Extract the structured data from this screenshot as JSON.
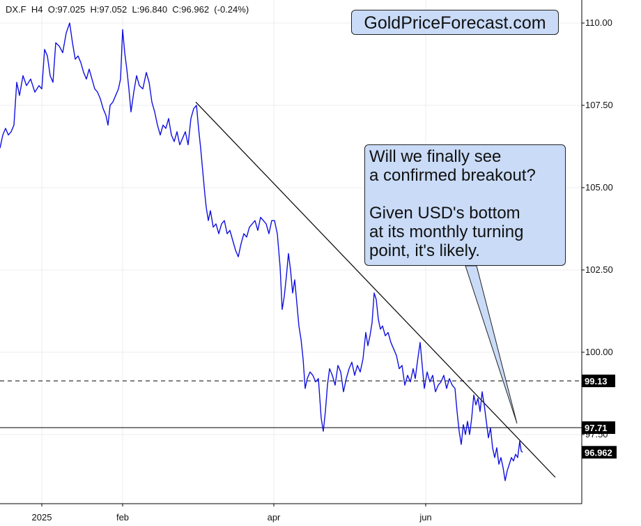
{
  "header": {
    "symbol": "DX.F",
    "interval": "H4",
    "open": "O:97.025",
    "high": "H:97.052",
    "low": "L:96.840",
    "close": "C:96.962",
    "change": "(-0.24%)"
  },
  "brand": {
    "text": "GoldPriceForecast.com"
  },
  "callout": {
    "line1": "Will we finally see",
    "line2": "a confirmed breakout?",
    "line3": "Given USD's bottom",
    "line4": "at its monthly turning",
    "line5": "point, it's likely."
  },
  "colors": {
    "price_line": "#1010e0",
    "callout_bg": "#c9dbf7",
    "axis": "#000000"
  },
  "chart_data": {
    "type": "line",
    "series": [
      {
        "values": [
          [
            0,
            106.2
          ],
          [
            4,
            106.6
          ],
          [
            8,
            106.8
          ],
          [
            12,
            106.6
          ],
          [
            16,
            106.7
          ],
          [
            20,
            106.9
          ],
          [
            24,
            108.2
          ],
          [
            28,
            107.8
          ],
          [
            33,
            108.4
          ],
          [
            38,
            108.1
          ],
          [
            44,
            108.3
          ],
          [
            50,
            107.9
          ],
          [
            56,
            108.1
          ],
          [
            60,
            108.0
          ],
          [
            64,
            109.2
          ],
          [
            68,
            109.0
          ],
          [
            72,
            108.4
          ],
          [
            76,
            108.2
          ],
          [
            80,
            109.4
          ],
          [
            85,
            109.3
          ],
          [
            90,
            109.1
          ],
          [
            95,
            109.7
          ],
          [
            100,
            110.0
          ],
          [
            104,
            109.4
          ],
          [
            108,
            108.9
          ],
          [
            112,
            109.0
          ],
          [
            116,
            108.8
          ],
          [
            120,
            108.5
          ],
          [
            124,
            108.3
          ],
          [
            128,
            108.6
          ],
          [
            132,
            108.3
          ],
          [
            136,
            108.0
          ],
          [
            140,
            107.9
          ],
          [
            144,
            107.7
          ],
          [
            148,
            107.4
          ],
          [
            152,
            107.2
          ],
          [
            155,
            106.9
          ],
          [
            158,
            107.5
          ],
          [
            162,
            107.6
          ],
          [
            166,
            107.8
          ],
          [
            170,
            108.0
          ],
          [
            173,
            108.3
          ],
          [
            176,
            109.8
          ],
          [
            179,
            109.1
          ],
          [
            182,
            108.6
          ],
          [
            185,
            108.0
          ],
          [
            188,
            107.3
          ],
          [
            192,
            107.9
          ],
          [
            196,
            108.4
          ],
          [
            200,
            108.1
          ],
          [
            205,
            108.0
          ],
          [
            210,
            108.5
          ],
          [
            214,
            108.2
          ],
          [
            218,
            107.6
          ],
          [
            222,
            107.3
          ],
          [
            226,
            106.9
          ],
          [
            230,
            106.6
          ],
          [
            234,
            106.9
          ],
          [
            238,
            106.8
          ],
          [
            242,
            107.1
          ],
          [
            246,
            106.6
          ],
          [
            250,
            106.4
          ],
          [
            254,
            106.7
          ],
          [
            258,
            106.3
          ],
          [
            262,
            106.5
          ],
          [
            266,
            106.7
          ],
          [
            270,
            106.3
          ],
          [
            274,
            107.1
          ],
          [
            278,
            107.4
          ],
          [
            282,
            107.5
          ],
          [
            285,
            106.8
          ],
          [
            288,
            106.2
          ],
          [
            291,
            105.5
          ],
          [
            294,
            104.8
          ],
          [
            296,
            104.4
          ],
          [
            299,
            104.0
          ],
          [
            302,
            104.3
          ],
          [
            306,
            103.8
          ],
          [
            310,
            103.9
          ],
          [
            314,
            103.6
          ],
          [
            318,
            103.9
          ],
          [
            322,
            104.0
          ],
          [
            326,
            103.6
          ],
          [
            330,
            103.7
          ],
          [
            334,
            103.4
          ],
          [
            338,
            103.1
          ],
          [
            342,
            102.9
          ],
          [
            346,
            103.3
          ],
          [
            350,
            103.6
          ],
          [
            354,
            103.5
          ],
          [
            358,
            103.8
          ],
          [
            362,
            103.9
          ],
          [
            366,
            104.0
          ],
          [
            370,
            103.7
          ],
          [
            374,
            104.1
          ],
          [
            378,
            104.0
          ],
          [
            382,
            103.9
          ],
          [
            386,
            103.6
          ],
          [
            390,
            104.0
          ],
          [
            394,
            104.0
          ],
          [
            398,
            103.6
          ],
          [
            402,
            102.6
          ],
          [
            405,
            101.3
          ],
          [
            408,
            101.7
          ],
          [
            411,
            102.3
          ],
          [
            414,
            103.0
          ],
          [
            417,
            102.5
          ],
          [
            420,
            101.8
          ],
          [
            423,
            102.2
          ],
          [
            426,
            101.5
          ],
          [
            429,
            100.8
          ],
          [
            432,
            100.4
          ],
          [
            435,
            99.8
          ],
          [
            438,
            98.9
          ],
          [
            441,
            99.2
          ],
          [
            445,
            99.4
          ],
          [
            449,
            99.3
          ],
          [
            453,
            99.1
          ],
          [
            457,
            99.2
          ],
          [
            461,
            98.0
          ],
          [
            464,
            97.6
          ],
          [
            467,
            98.2
          ],
          [
            470,
            99.0
          ],
          [
            473,
            99.5
          ],
          [
            477,
            99.3
          ],
          [
            481,
            99.0
          ],
          [
            485,
            99.6
          ],
          [
            489,
            99.4
          ],
          [
            493,
            98.8
          ],
          [
            497,
            99.2
          ],
          [
            501,
            99.5
          ],
          [
            505,
            99.7
          ],
          [
            509,
            99.3
          ],
          [
            513,
            99.6
          ],
          [
            517,
            99.4
          ],
          [
            521,
            99.8
          ],
          [
            525,
            100.6
          ],
          [
            528,
            100.2
          ],
          [
            531,
            100.5
          ],
          [
            534,
            100.9
          ],
          [
            537,
            101.8
          ],
          [
            540,
            101.6
          ],
          [
            543,
            101.0
          ],
          [
            546,
            100.7
          ],
          [
            549,
            100.8
          ],
          [
            553,
            100.5
          ],
          [
            557,
            100.6
          ],
          [
            561,
            100.3
          ],
          [
            565,
            100.1
          ],
          [
            569,
            99.9
          ],
          [
            573,
            99.5
          ],
          [
            577,
            99.6
          ],
          [
            581,
            99.0
          ],
          [
            585,
            99.3
          ],
          [
            589,
            99.1
          ],
          [
            593,
            99.5
          ],
          [
            596,
            99.2
          ],
          [
            599,
            99.7
          ],
          [
            603,
            100.3
          ],
          [
            606,
            99.6
          ],
          [
            609,
            98.9
          ],
          [
            613,
            99.4
          ],
          [
            617,
            99.1
          ],
          [
            621,
            99.3
          ],
          [
            625,
            98.8
          ],
          [
            629,
            99.0
          ],
          [
            633,
            99.1
          ],
          [
            637,
            99.3
          ],
          [
            641,
            98.9
          ],
          [
            645,
            99.2
          ],
          [
            649,
            99.0
          ],
          [
            653,
            98.9
          ],
          [
            656,
            98.2
          ],
          [
            659,
            97.6
          ],
          [
            662,
            97.2
          ],
          [
            665,
            97.8
          ],
          [
            668,
            97.5
          ],
          [
            671,
            97.9
          ],
          [
            674,
            97.5
          ],
          [
            677,
            98.0
          ],
          [
            680,
            98.7
          ],
          [
            683,
            98.4
          ],
          [
            686,
            98.6
          ],
          [
            689,
            98.2
          ],
          [
            692,
            98.8
          ],
          [
            695,
            98.4
          ],
          [
            698,
            97.9
          ],
          [
            701,
            97.4
          ],
          [
            704,
            97.7
          ],
          [
            707,
            97.1
          ],
          [
            710,
            96.8
          ],
          [
            713,
            97.1
          ],
          [
            716,
            96.6
          ],
          [
            719,
            96.8
          ],
          [
            722,
            96.5
          ],
          [
            725,
            96.1
          ],
          [
            728,
            96.4
          ],
          [
            731,
            96.6
          ],
          [
            734,
            96.8
          ],
          [
            737,
            96.7
          ],
          [
            740,
            96.9
          ],
          [
            743,
            96.8
          ],
          [
            746,
            97.3
          ],
          [
            748,
            97.0
          ],
          [
            750,
            96.962
          ]
        ]
      }
    ],
    "x_ticks": [
      {
        "label": "2025",
        "x": 60
      },
      {
        "label": "feb",
        "x": 176
      },
      {
        "label": "apr",
        "x": 393
      },
      {
        "label": "jun",
        "x": 611
      }
    ],
    "y_ticks": [
      "110.00",
      "107.50",
      "105.00",
      "102.50",
      "100.00",
      "97.50"
    ],
    "ylim": [
      95.4,
      110.7
    ],
    "xlim": [
      0,
      835
    ],
    "horizontal_levels": [
      {
        "value": 99.13,
        "style": "dashed",
        "label": "99.13"
      },
      {
        "value": 97.71,
        "style": "solid",
        "label": "97.71"
      }
    ],
    "last_price": {
      "value": 96.962,
      "label": "96.962"
    },
    "trendline": [
      [
        281,
        107.6
      ],
      [
        797,
        96.2
      ]
    ],
    "grid": true,
    "chart_type": "line"
  }
}
